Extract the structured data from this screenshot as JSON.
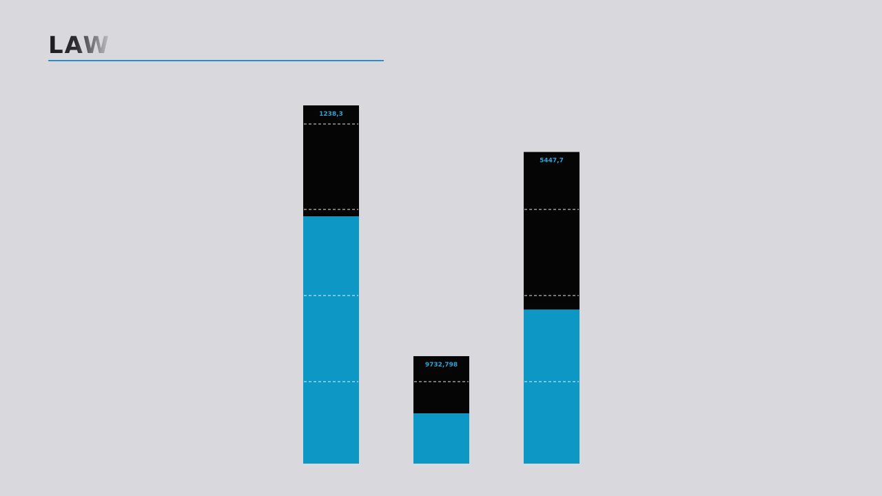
{
  "title": "LAW",
  "colors": {
    "background": "#d9d8dd",
    "accent": "#0c97c4",
    "dark": "#050505",
    "label": "#2aa5d6",
    "divider": "#ffffff",
    "underline": "#2a8fc7"
  },
  "chart_data": {
    "type": "bar",
    "stacked": true,
    "grid": false,
    "legend": "none",
    "bars": [
      {
        "label": "1238,3",
        "blue": 0.69,
        "black": 0.31
      },
      {
        "label": "9732,798",
        "blue": 0.14,
        "black": 0.16
      },
      {
        "label": "5447,7",
        "blue": 0.43,
        "black": 0.44
      }
    ]
  }
}
